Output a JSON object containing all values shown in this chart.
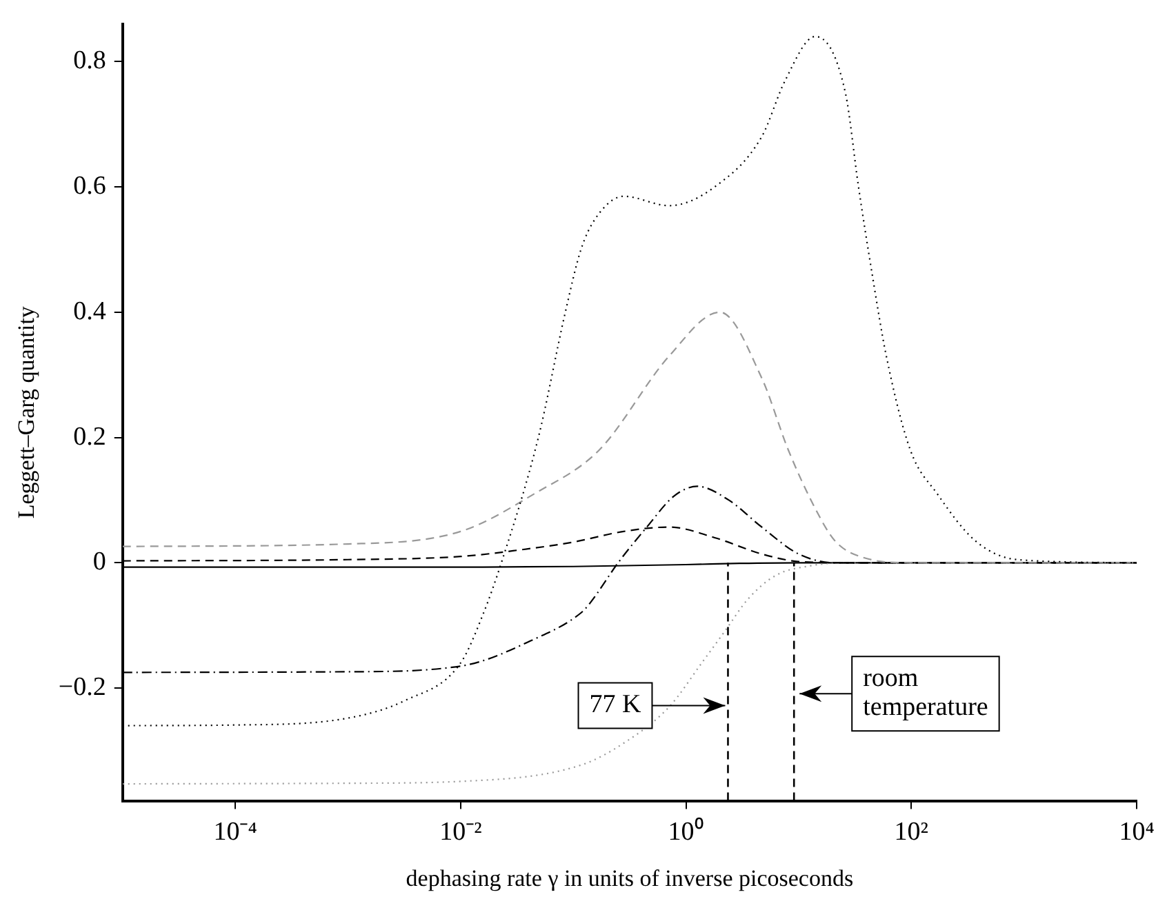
{
  "chart_data": {
    "type": "line",
    "xlabel": "dephasing rate γ in units of inverse picoseconds",
    "ylabel": "Leggett–Garg quantity",
    "log": "x",
    "grid": false,
    "legend": false,
    "marker": "none",
    "xlim": [
      1e-05,
      10000
    ],
    "xticks": [
      {
        "value": 0.0001,
        "label": "10⁻⁴"
      },
      {
        "value": 0.01,
        "label": "10⁻²"
      },
      {
        "value": 1,
        "label": "10⁰"
      },
      {
        "value": 100,
        "label": "10²"
      },
      {
        "value": 10000,
        "label": "10⁴"
      }
    ],
    "ylim": [
      -0.38,
      0.86
    ],
    "yticks": [
      {
        "value": -0.2,
        "label": "−0.2"
      },
      0,
      0.2,
      0.4,
      0.6,
      0.8
    ],
    "series": [
      {
        "color": "#000000",
        "line_style": "dotted",
        "x": [
          1e-05,
          0.0001,
          0.001,
          0.0032,
          0.01,
          0.016,
          0.023,
          0.049,
          0.085,
          0.117,
          0.158,
          0.28,
          0.71,
          1.8,
          4.7,
          7.6,
          14,
          26,
          34,
          45,
          60,
          98,
          170,
          370,
          870,
          10000
        ],
        "values": [
          -0.26,
          -0.259,
          -0.248,
          -0.22,
          -0.16,
          -0.08,
          0,
          0.2,
          0.4,
          0.5,
          0.55,
          0.585,
          0.57,
          0.6,
          0.68,
          0.77,
          0.84,
          0.75,
          0.6,
          0.46,
          0.33,
          0.18,
          0.11,
          0.035,
          0.005,
          0
        ]
      },
      {
        "color": "#999999",
        "line_style": "dashed",
        "x": [
          1e-05,
          0.001,
          0.01,
          0.045,
          0.17,
          0.71,
          2,
          4.7,
          8.1,
          14,
          21,
          38,
          100,
          10000
        ],
        "values": [
          0.026,
          0.03,
          0.05,
          0.11,
          0.18,
          0.33,
          0.4,
          0.295,
          0.18,
          0.087,
          0.035,
          0.008,
          0,
          0
        ]
      },
      {
        "color": "#000000",
        "line_style": "dashdot",
        "x": [
          1e-05,
          0.001,
          0.01,
          0.045,
          0.117,
          0.14,
          0.25,
          0.45,
          0.79,
          1.26,
          2.4,
          4.7,
          10,
          21,
          10000
        ],
        "values": [
          -0.175,
          -0.174,
          -0.165,
          -0.122,
          -0.08,
          -0.065,
          0,
          0.057,
          0.107,
          0.122,
          0.1,
          0.057,
          0.014,
          0,
          0
        ]
      },
      {
        "color": "#000000",
        "line_style": "dashed",
        "x": [
          1e-05,
          0.001,
          0.01,
          0.032,
          0.1,
          0.28,
          0.71,
          1.8,
          4.7,
          10,
          30,
          10000
        ],
        "values": [
          0.003,
          0.005,
          0.01,
          0.02,
          0.033,
          0.05,
          0.057,
          0.04,
          0.014,
          0.002,
          0,
          0
        ]
      },
      {
        "color": "#999999",
        "line_style": "dotted",
        "x": [
          1e-05,
          0.001,
          0.01,
          0.117,
          0.28,
          0.71,
          1.38,
          2.24,
          3.55,
          6.3,
          12.6,
          25,
          10000
        ],
        "values": [
          -0.353,
          -0.352,
          -0.349,
          -0.323,
          -0.288,
          -0.23,
          -0.16,
          -0.108,
          -0.058,
          -0.02,
          -0.005,
          0,
          0
        ]
      },
      {
        "color": "#000000",
        "line_style": "solid",
        "x": [
          1e-05,
          0.01,
          0.1,
          1,
          3,
          10,
          10000
        ],
        "values": [
          -0.007,
          -0.007,
          -0.006,
          -0.003,
          -0.001,
          0,
          0
        ]
      }
    ],
    "ref_lines": [
      {
        "axis": "x",
        "value": 2.36,
        "label": "77 K",
        "color": "#000000",
        "line_style": "dashed"
      },
      {
        "axis": "x",
        "value": 9.1,
        "label": "room temperature",
        "color": "#000000",
        "line_style": "dashed"
      }
    ]
  }
}
